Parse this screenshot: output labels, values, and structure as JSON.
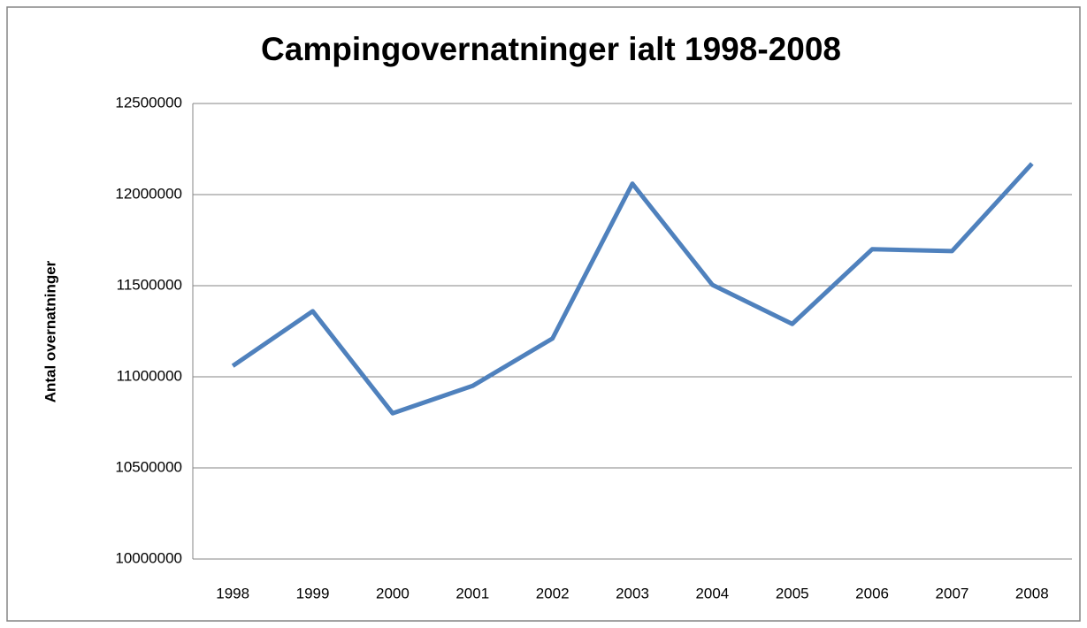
{
  "chart_data": {
    "type": "line",
    "title": "Campingovernatninger ialt 1998-2008",
    "y_label": "Antal overnatninger",
    "categories": [
      "1998",
      "1999",
      "2000",
      "2001",
      "2002",
      "2003",
      "2004",
      "2005",
      "2006",
      "2007",
      "2008"
    ],
    "series": [
      {
        "name": "Campingovernatninger",
        "color": "#4f81bd",
        "values": [
          11060000,
          11360000,
          10800000,
          10950000,
          11210000,
          12060000,
          11505000,
          11290000,
          11700000,
          11690000,
          12170000
        ]
      }
    ],
    "ylim": [
      10000000,
      12500000
    ],
    "yticks": [
      10000000,
      10500000,
      11000000,
      11500000,
      12000000,
      12500000
    ],
    "grid": true
  }
}
